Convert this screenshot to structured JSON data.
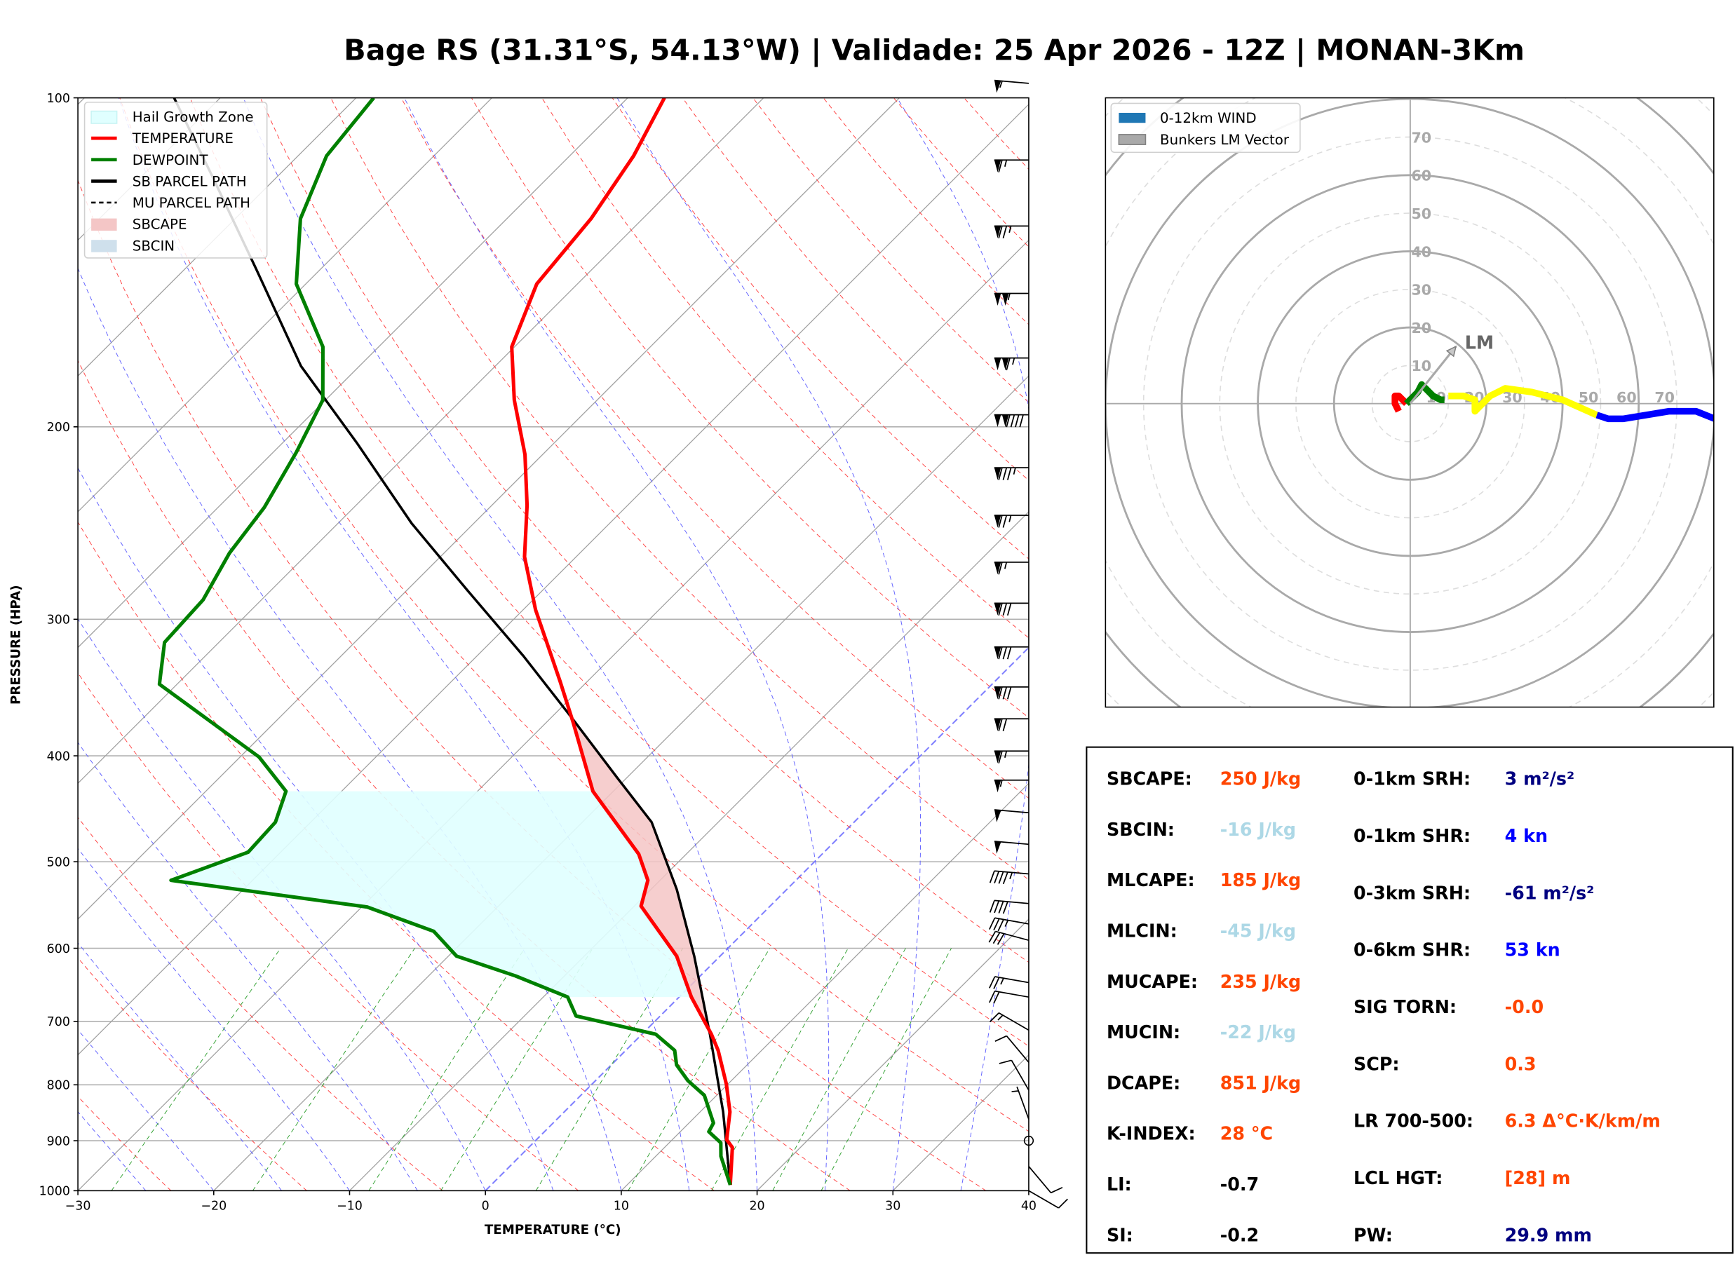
{
  "title": "Bage RS (31.31°S, 54.13°W) | Validade: 25 Apr 2026 - 12Z | MONAN-3Km",
  "skewt": {
    "type": "line",
    "xlabel": "TEMPERATURE (°C)",
    "ylabel": "PRESSURE (HPA)",
    "xlim": [
      -30,
      40
    ],
    "ylim": [
      1000,
      100
    ],
    "y_scale": "log",
    "skew_deg": 45,
    "x_ticks": [
      -30,
      -20,
      -10,
      0,
      10,
      20,
      30,
      40
    ],
    "x_tick_labels": [
      "−30",
      "−20",
      "−10",
      "0",
      "10",
      "20",
      "30",
      "40"
    ],
    "y_ticks": [
      100,
      200,
      300,
      400,
      500,
      600,
      700,
      800,
      900,
      1000
    ],
    "y_tick_labels": [
      "100",
      "200",
      "300",
      "400",
      "500",
      "600",
      "700",
      "800",
      "900",
      "1000"
    ],
    "grid": true,
    "legend_position": "top-left",
    "legend": [
      {
        "label": "Hail Growth Zone",
        "color": "#e0ffff",
        "kind": "patch"
      },
      {
        "label": "TEMPERATURE",
        "color": "#ff0000",
        "kind": "line"
      },
      {
        "label": "DEWPOINT",
        "color": "#008000",
        "kind": "line"
      },
      {
        "label": "SB PARCEL PATH",
        "color": "#000000",
        "kind": "line"
      },
      {
        "label": "MU PARCEL PATH",
        "color": "#000000",
        "kind": "dashed"
      },
      {
        "label": "SBCAPE",
        "color": "#f4c6c6",
        "kind": "patch"
      },
      {
        "label": "SBCIN",
        "color": "#cfe0ec",
        "kind": "patch"
      }
    ],
    "temperature": {
      "color": "#ff0000",
      "points": [
        [
          988,
          17.6
        ],
        [
          913,
          15.0
        ],
        [
          898,
          14.0
        ],
        [
          847,
          12.2
        ],
        [
          799,
          9.9
        ],
        [
          744,
          6.8
        ],
        [
          719,
          5.1
        ],
        [
          665,
          0.9
        ],
        [
          610,
          -3.2
        ],
        [
          549,
          -9.5
        ],
        [
          520,
          -10.9
        ],
        [
          492,
          -13.5
        ],
        [
          431,
          -21.5
        ],
        [
          373,
          -28.0
        ],
        [
          342,
          -32.0
        ],
        [
          294,
          -39.1
        ],
        [
          263,
          -43.8
        ],
        [
          236,
          -47.4
        ],
        [
          212,
          -51.3
        ],
        [
          189,
          -56.1
        ],
        [
          169,
          -60.2
        ],
        [
          148,
          -63.0
        ],
        [
          129,
          -63.8
        ],
        [
          113,
          -65.3
        ],
        [
          100,
          -67.3
        ]
      ]
    },
    "dewpoint": {
      "color": "#008000",
      "points": [
        [
          988,
          17.6
        ],
        [
          930,
          14.8
        ],
        [
          904,
          13.8
        ],
        [
          883,
          12.1
        ],
        [
          867,
          11.8
        ],
        [
          818,
          9.1
        ],
        [
          793,
          6.8
        ],
        [
          767,
          4.8
        ],
        [
          744,
          3.6
        ],
        [
          719,
          1.0
        ],
        [
          692,
          -6.2
        ],
        [
          665,
          -8.2
        ],
        [
          636,
          -13.6
        ],
        [
          610,
          -19.4
        ],
        [
          579,
          -22.9
        ],
        [
          550,
          -29.6
        ],
        [
          520,
          -46.0
        ],
        [
          490,
          -42.4
        ],
        [
          460,
          -42.6
        ],
        [
          431,
          -44.1
        ],
        [
          401,
          -48.6
        ],
        [
          344,
          -61.3
        ],
        [
          315,
          -64.0
        ],
        [
          288,
          -64.3
        ],
        [
          261,
          -65.8
        ],
        [
          237,
          -66.6
        ],
        [
          211,
          -68.3
        ],
        [
          189,
          -70.2
        ],
        [
          169,
          -74.1
        ],
        [
          148,
          -80.7
        ],
        [
          129,
          -85.2
        ],
        [
          113,
          -87.9
        ],
        [
          100,
          -88.7
        ]
      ]
    },
    "sb_parcel": {
      "color": "#000000",
      "points": [
        [
          988,
          17.6
        ],
        [
          847,
          11.7
        ],
        [
          719,
          5.0
        ],
        [
          610,
          -1.9
        ],
        [
          530,
          -8.1
        ],
        [
          460,
          -14.9
        ],
        [
          419,
          -20.7
        ],
        [
          369,
          -28.5
        ],
        [
          324,
          -36.6
        ],
        [
          282,
          -45.6
        ],
        [
          245,
          -54.6
        ],
        [
          207,
          -64.5
        ],
        [
          176,
          -74.3
        ],
        [
          143,
          -84.9
        ],
        [
          118,
          -94.8
        ],
        [
          100,
          -103.4
        ]
      ]
    },
    "hail_growth_zone_p": [
      431,
      665
    ],
    "sbcape_p": [
      365,
      720
    ],
    "zero_isotherm_color": "#8080ff",
    "wind_barbs": [
      {
        "p": 97,
        "dir": 275,
        "spd": 55
      },
      {
        "p": 114,
        "dir": 270,
        "spd": 65
      },
      {
        "p": 131,
        "dir": 270,
        "spd": 75
      },
      {
        "p": 151,
        "dir": 270,
        "spd": 105
      },
      {
        "p": 173,
        "dir": 270,
        "spd": 115
      },
      {
        "p": 195,
        "dir": 270,
        "spd": 140
      },
      {
        "p": 218,
        "dir": 270,
        "spd": 85
      },
      {
        "p": 241,
        "dir": 270,
        "spd": 75
      },
      {
        "p": 266,
        "dir": 270,
        "spd": 65
      },
      {
        "p": 290,
        "dir": 270,
        "spd": 80
      },
      {
        "p": 318,
        "dir": 270,
        "spd": 80
      },
      {
        "p": 346,
        "dir": 270,
        "spd": 80
      },
      {
        "p": 370,
        "dir": 270,
        "spd": 70
      },
      {
        "p": 396,
        "dir": 270,
        "spd": 65
      },
      {
        "p": 421,
        "dir": 270,
        "spd": 55
      },
      {
        "p": 451,
        "dir": 275,
        "spd": 50
      },
      {
        "p": 482,
        "dir": 275,
        "spd": 50
      },
      {
        "p": 513,
        "dir": 275,
        "spd": 45
      },
      {
        "p": 546,
        "dir": 275,
        "spd": 40
      },
      {
        "p": 570,
        "dir": 280,
        "spd": 35
      },
      {
        "p": 590,
        "dir": 285,
        "spd": 30
      },
      {
        "p": 645,
        "dir": 280,
        "spd": 25
      },
      {
        "p": 665,
        "dir": 280,
        "spd": 20
      },
      {
        "p": 713,
        "dir": 300,
        "spd": 15
      },
      {
        "p": 763,
        "dir": 320,
        "spd": 10
      },
      {
        "p": 809,
        "dir": 330,
        "spd": 10
      },
      {
        "p": 860,
        "dir": 340,
        "spd": 5
      },
      {
        "p": 900,
        "dir": 0,
        "spd": 0
      },
      {
        "p": 950,
        "dir": 140,
        "spd": 10
      },
      {
        "p": 1000,
        "dir": 120,
        "spd": 10
      }
    ]
  },
  "hodograph": {
    "type": "line",
    "xlim": [
      -80,
      80
    ],
    "ylim": [
      -80,
      80
    ],
    "ring_labels": [
      "10",
      "20",
      "30",
      "40",
      "50",
      "60",
      "70"
    ],
    "ring_values": [
      10,
      20,
      30,
      40,
      50,
      60,
      70
    ],
    "legend_position": "top-left",
    "legend": [
      {
        "label": "0-12km WIND",
        "color": "#1f77b4"
      },
      {
        "label": "Bunkers LM Vector",
        "color": "#a9a9a9"
      }
    ],
    "segments": [
      {
        "color": "#ff0000",
        "points": [
          [
            -3,
            -2
          ],
          [
            -4,
            0
          ],
          [
            -4,
            2
          ],
          [
            -3,
            2
          ],
          [
            -2,
            1
          ],
          [
            -1,
            0
          ]
        ]
      },
      {
        "color": "#008000",
        "points": [
          [
            -1,
            0
          ],
          [
            2,
            3
          ],
          [
            3,
            5
          ],
          [
            4,
            4
          ],
          [
            6,
            2
          ],
          [
            8,
            1
          ],
          [
            9,
            1
          ]
        ]
      },
      {
        "color": "#ffff00",
        "points": [
          [
            10,
            2
          ],
          [
            14,
            2
          ],
          [
            17,
            1
          ],
          [
            17,
            -2
          ],
          [
            19,
            0
          ],
          [
            21,
            2
          ],
          [
            25,
            4
          ],
          [
            32,
            3
          ],
          [
            40,
            1
          ],
          [
            49,
            -3
          ]
        ]
      },
      {
        "color": "#0000ff",
        "points": [
          [
            49,
            -3
          ],
          [
            52,
            -4
          ],
          [
            56,
            -4
          ],
          [
            62,
            -3
          ],
          [
            68,
            -2
          ],
          [
            75,
            -2
          ],
          [
            80,
            -4
          ]
        ]
      }
    ],
    "lm_vector": {
      "label": "LM",
      "u": 12,
      "v": 15,
      "color": "#a9a9a9"
    }
  },
  "stats": {
    "left": [
      {
        "label": "SBCAPE:",
        "value": "250 J/kg",
        "color": "#ff4500"
      },
      {
        "label": "SBCIN:",
        "value": "-16 J/kg",
        "color": "#add8e6"
      },
      {
        "label": "MLCAPE:",
        "value": "185 J/kg",
        "color": "#ff4500"
      },
      {
        "label": "MLCIN:",
        "value": "-45 J/kg",
        "color": "#add8e6"
      },
      {
        "label": "MUCAPE:",
        "value": "235 J/kg",
        "color": "#ff4500"
      },
      {
        "label": "MUCIN:",
        "value": "-22 J/kg",
        "color": "#add8e6"
      },
      {
        "label": "DCAPE:",
        "value": "851 J/kg",
        "color": "#ff4500"
      },
      {
        "label": "K-INDEX:",
        "value": "28 °C",
        "color": "#ff4500"
      },
      {
        "label": "LI:",
        "value": "-0.7",
        "color": "#000000"
      },
      {
        "label": "SI:",
        "value": "-0.2",
        "color": "#000000"
      }
    ],
    "right": [
      {
        "label": "0-1km SRH:",
        "value": "3 m²/s²",
        "color": "#000080"
      },
      {
        "label": "0-1km SHR:",
        "value": "4 kn",
        "color": "#0000ff"
      },
      {
        "label": "0-3km SRH:",
        "value": "-61 m²/s²",
        "color": "#000080"
      },
      {
        "label": "0-6km SHR:",
        "value": "53 kn",
        "color": "#0000ff"
      },
      {
        "label": "SIG TORN:",
        "value": "-0.0",
        "color": "#ff4500"
      },
      {
        "label": "SCP:",
        "value": "0.3",
        "color": "#ff4500"
      },
      {
        "label": "LR 700-500:",
        "value": "6.3 Δ°C·K/km/m",
        "color": "#ff4500"
      },
      {
        "label": "LCL HGT:",
        "value": "[28] m",
        "color": "#ff4500"
      },
      {
        "label": "PW:",
        "value": "29.9 mm",
        "color": "#000080"
      }
    ]
  }
}
